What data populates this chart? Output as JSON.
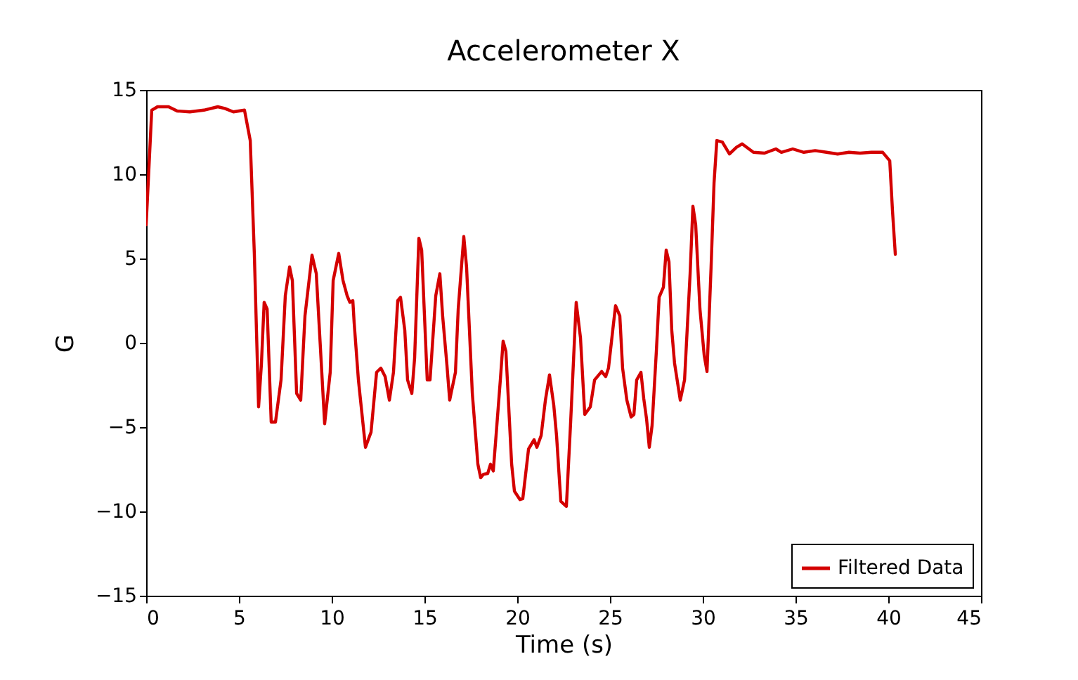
{
  "chart_data": {
    "type": "line",
    "title": "Accelerometer X",
    "xlabel": "Time (s)",
    "ylabel": "G",
    "xlim": [
      0,
      45
    ],
    "xticks": [
      0,
      5,
      10,
      15,
      20,
      25,
      30,
      35,
      40,
      45
    ],
    "ylim": [
      -15,
      15
    ],
    "yticks": [
      -15,
      -10,
      -5,
      0,
      5,
      10,
      15
    ],
    "grid": false,
    "legend": "bottom right",
    "line_style": "solid",
    "marker": "none",
    "x": [
      0,
      0.3,
      0.61,
      1.21,
      1.67,
      2.35,
      3.11,
      3.86,
      4.24,
      4.7,
      5.3,
      5.61,
      5.83,
      6.06,
      6.21,
      6.36,
      6.52,
      6.74,
      6.97,
      7.27,
      7.5,
      7.73,
      7.88,
      8.11,
      8.33,
      8.56,
      8.94,
      9.17,
      9.62,
      9.92,
      10.08,
      10.38,
      10.61,
      10.83,
      10.98,
      11.14,
      11.21,
      11.44,
      11.82,
      12.12,
      12.42,
      12.65,
      12.88,
      13.11,
      13.33,
      13.56,
      13.71,
      13.94,
      14.09,
      14.32,
      14.47,
      14.7,
      14.85,
      15.15,
      15.3,
      15.61,
      15.83,
      15.98,
      16.21,
      16.36,
      16.67,
      16.82,
      17.12,
      17.27,
      17.58,
      17.88,
      18.03,
      18.18,
      18.41,
      18.56,
      18.71,
      18.86,
      19.09,
      19.24,
      19.39,
      19.7,
      19.85,
      20.15,
      20.3,
      20.61,
      20.91,
      21.06,
      21.29,
      21.52,
      21.74,
      21.97,
      22.12,
      22.35,
      22.65,
      22.88,
      23.18,
      23.41,
      23.64,
      23.94,
      24.17,
      24.55,
      24.77,
      24.92,
      25.15,
      25.3,
      25.53,
      25.68,
      25.91,
      26.14,
      26.29,
      26.44,
      26.67,
      26.82,
      26.97,
      27.12,
      27.27,
      27.5,
      27.65,
      27.88,
      28.03,
      28.18,
      28.33,
      28.48,
      28.79,
      29.02,
      29.32,
      29.47,
      29.62,
      29.85,
      30.08,
      30.23,
      30.45,
      30.61,
      30.76,
      31.06,
      31.44,
      31.82,
      32.12,
      32.73,
      33.33,
      33.94,
      34.24,
      34.85,
      35.45,
      36.06,
      36.67,
      37.27,
      37.88,
      38.48,
      39.09,
      39.7,
      40.08,
      40.23,
      40.38
    ],
    "series": [
      {
        "name": "Filtered Data",
        "color": "#d40000",
        "values": [
          7.0,
          13.8,
          14.0,
          14.0,
          13.75,
          13.7,
          13.8,
          14.0,
          13.9,
          13.7,
          13.8,
          12.0,
          5.3,
          -3.8,
          -1.3,
          2.4,
          2.0,
          -4.7,
          -4.7,
          -2.2,
          2.8,
          4.5,
          3.7,
          -3.0,
          -3.4,
          1.6,
          5.2,
          4.1,
          -4.8,
          -1.75,
          3.7,
          5.3,
          3.7,
          2.8,
          2.4,
          2.5,
          1.2,
          -2.2,
          -6.2,
          -5.3,
          -1.75,
          -1.5,
          -2.0,
          -3.4,
          -1.75,
          2.5,
          2.7,
          0.75,
          -2.2,
          -3.0,
          -0.9,
          6.2,
          5.5,
          -2.2,
          -2.2,
          2.8,
          4.1,
          1.6,
          -1.3,
          -3.4,
          -1.75,
          2.0,
          6.3,
          4.5,
          -3.0,
          -7.2,
          -8.0,
          -7.8,
          -7.75,
          -7.2,
          -7.6,
          -5.5,
          -2.2,
          0.1,
          -0.5,
          -7.2,
          -8.8,
          -9.3,
          -9.25,
          -6.3,
          -5.75,
          -6.2,
          -5.5,
          -3.4,
          -1.9,
          -3.7,
          -5.5,
          -9.4,
          -9.7,
          -4.7,
          2.4,
          0.3,
          -4.25,
          -3.8,
          -2.2,
          -1.7,
          -2.0,
          -1.5,
          0.75,
          2.2,
          1.6,
          -1.5,
          -3.4,
          -4.4,
          -4.25,
          -2.2,
          -1.75,
          -3.3,
          -4.5,
          -6.2,
          -4.9,
          -0.5,
          2.7,
          3.3,
          5.5,
          4.8,
          0.75,
          -1.2,
          -3.4,
          -2.2,
          4.1,
          8.1,
          7.0,
          2.0,
          -0.75,
          -1.7,
          4.5,
          9.5,
          12.0,
          11.9,
          11.2,
          11.6,
          11.8,
          11.3,
          11.25,
          11.5,
          11.3,
          11.5,
          11.3,
          11.4,
          11.3,
          11.2,
          11.3,
          11.25,
          11.3,
          11.3,
          10.8,
          7.8,
          5.25
        ]
      }
    ]
  }
}
